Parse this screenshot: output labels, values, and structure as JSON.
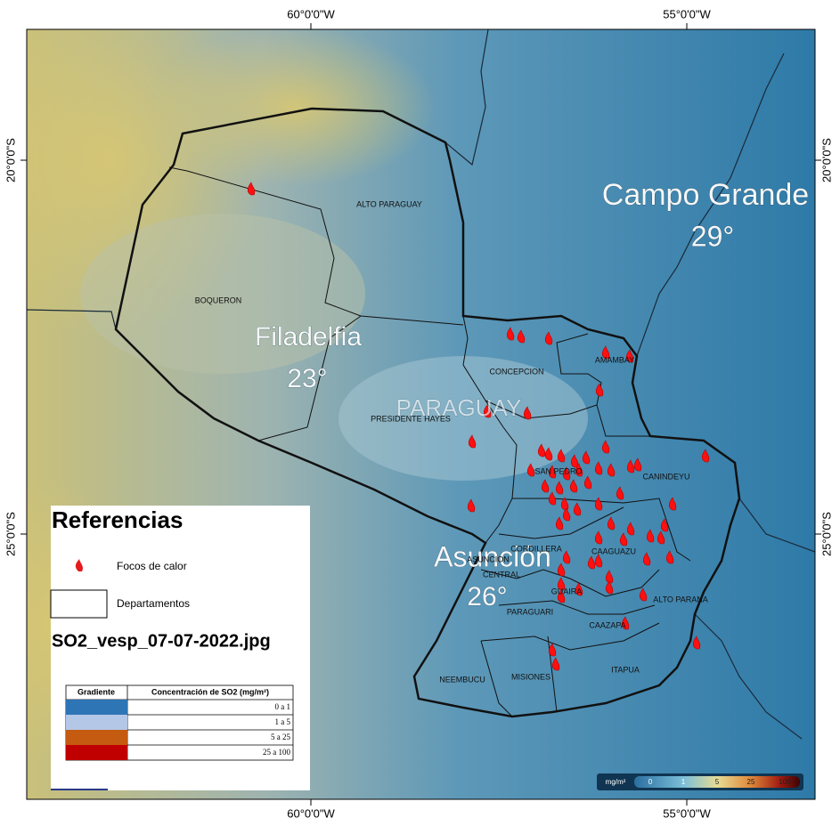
{
  "graticule": {
    "top": [
      "60°0'0\"W",
      "55°0'0\"W"
    ],
    "bottom": [
      "60°0'0\"W",
      "55°0'0\"W"
    ],
    "left": [
      "20°0'0\"S",
      "25°0'0\"S"
    ],
    "right": [
      "20°0'0\"S",
      "25°0'0\"S"
    ]
  },
  "basemap_labels": [
    "Campo Grande",
    "29°",
    "Filadelfia",
    "23°",
    "PARAGUAY",
    "Asunción",
    "26°"
  ],
  "departments": [
    "ALTO PARAGUAY",
    "BOQUERON",
    "CONCEPCION",
    "AMAMBAY",
    "PRESIDENTE HAYES",
    "SAN PEDRO",
    "CANINDEYU",
    "CORDILLERA",
    "ASUNCION",
    "CENTRAL",
    "CAAGUAZU",
    "GUAIRA",
    "ALTO PARANA",
    "PARAGUARI",
    "CAAZAPA",
    "NEEMBUCU",
    "MISIONES",
    "ITAPUA"
  ],
  "legend": {
    "title": "Referencias",
    "items": [
      "Focos de calor",
      "Departamentos"
    ],
    "file": "SO2_vesp_07-07-2022.jpg",
    "table": {
      "header": [
        "Gradiente",
        "Concentración de SO2 (mg/m²)"
      ],
      "rows": [
        "0 a 1",
        "1 a 5",
        "5 a 25",
        "25 a 100"
      ]
    }
  },
  "colorbar": {
    "unit": "mg/m²",
    "ticks": [
      "0",
      "1",
      "5",
      "25",
      "100"
    ]
  }
}
